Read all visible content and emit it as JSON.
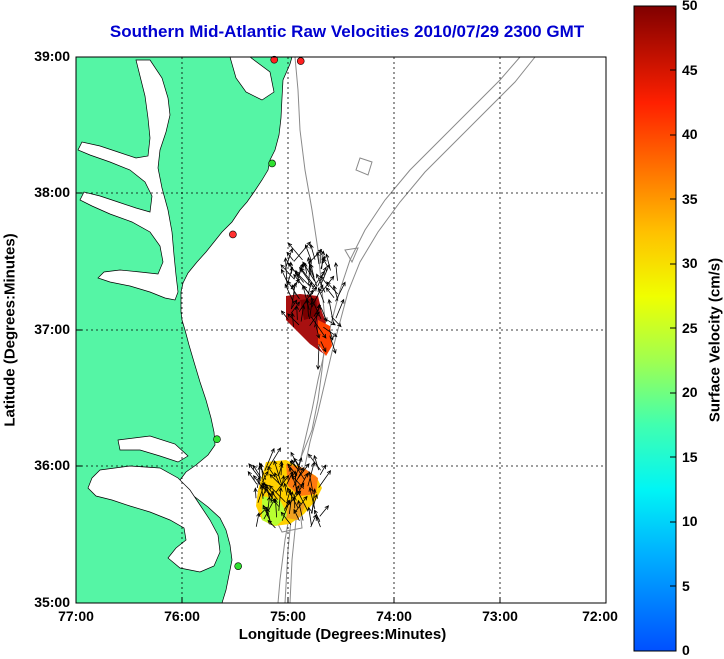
{
  "title": "Southern Mid-Atlantic Raw Velocities 2010/07/29 2300 GMT",
  "xlabel": "Longitude (Degrees:Minutes)",
  "ylabel": "Latitude (Degrees:Minutes)",
  "x_ticks": [
    "77:00",
    "76:00",
    "75:00",
    "74:00",
    "73:00",
    "72:00"
  ],
  "y_ticks": [
    "39:00",
    "38:00",
    "37:00",
    "36:00",
    "35:00"
  ],
  "colorbar": {
    "label": "Surface Velocity (cm/s)",
    "ticks": [
      "50",
      "45",
      "40",
      "35",
      "30",
      "25",
      "20",
      "15",
      "10",
      "5",
      "0"
    ],
    "min": 0,
    "max": 50,
    "colormap": "jet"
  },
  "colors": {
    "land": "#55f5a5",
    "coast_line": "#000000",
    "bathymetry": "#8a8a8a",
    "title": "#0000d0"
  },
  "chart_data": {
    "type": "map",
    "xlim": [
      -77,
      -72
    ],
    "ylim": [
      35,
      39
    ],
    "grid": true,
    "stations": [
      {
        "lon": -75.13,
        "lat": 38.98,
        "color": "#ff2020"
      },
      {
        "lon": -74.88,
        "lat": 38.97,
        "color": "#ff2020"
      },
      {
        "lon": -75.15,
        "lat": 38.22,
        "color": "#30e030"
      },
      {
        "lon": -75.52,
        "lat": 37.7,
        "color": "#ff3030"
      },
      {
        "lon": -75.67,
        "lat": 36.2,
        "color": "#30e030"
      },
      {
        "lon": -75.47,
        "lat": 35.27,
        "color": "#30e030"
      }
    ]
  }
}
